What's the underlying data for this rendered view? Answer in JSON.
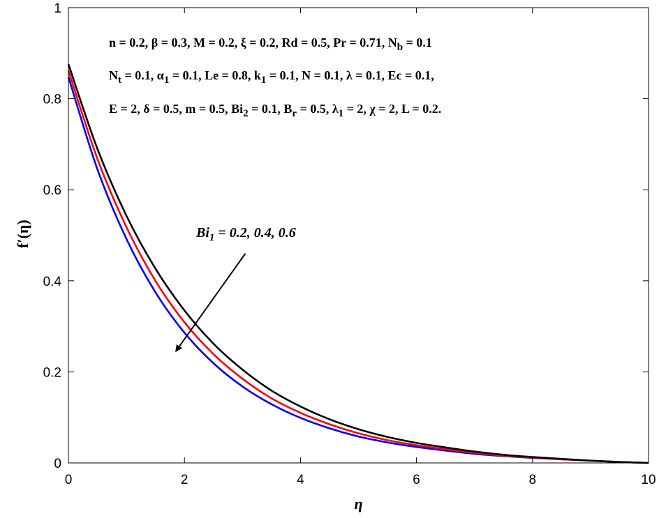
{
  "chart_data": {
    "type": "line",
    "xlabel": "η",
    "ylabel": "f′(η)",
    "xlim": [
      0,
      10
    ],
    "ylim": [
      0,
      1
    ],
    "x_ticks": [
      "0",
      "2",
      "4",
      "6",
      "8",
      "10"
    ],
    "y_ticks": [
      "0",
      "0.2",
      "0.4",
      "0.6",
      "0.8",
      "1"
    ],
    "grid": false,
    "parameter_lines": [
      "n = 0.2, β = 0.3, M = 0.2, ξ = 0.2, Rd = 0.5, Pr = 0.71, N_b = 0.1",
      "N_t = 0.1, α_1 = 0.1, Le = 0.8, k_1 = 0.1, N = 0.1, λ = 0.1, Ec = 0.1,",
      "E = 2, δ = 0.5, m = 0.5, Bi_2 = 0.1, B_r = 0.5, λ_1 = 2, χ = 2, L = 0.2."
    ],
    "annotation": {
      "text": "Bi_1 = 0.2, 0.4, 0.6",
      "arrow_from": [
        3.05,
        0.46
      ],
      "arrow_to": [
        1.85,
        0.245
      ]
    },
    "x": [
      0,
      0.5,
      1,
      1.5,
      2,
      2.5,
      3,
      3.5,
      4,
      4.5,
      5,
      5.5,
      6,
      6.5,
      7,
      7.5,
      8,
      8.5,
      9,
      9.5,
      10
    ],
    "series": [
      {
        "color": "#0000ff",
        "values": [
          0.848,
          0.645,
          0.492,
          0.375,
          0.286,
          0.219,
          0.168,
          0.129,
          0.099,
          0.076,
          0.058,
          0.045,
          0.035,
          0.027,
          0.02,
          0.015,
          0.011,
          0.008,
          0.005,
          0.002,
          0.0
        ]
      },
      {
        "color": "#ff0000",
        "values": [
          0.862,
          0.668,
          0.518,
          0.4,
          0.309,
          0.239,
          0.185,
          0.142,
          0.11,
          0.085,
          0.065,
          0.05,
          0.039,
          0.03,
          0.022,
          0.016,
          0.012,
          0.008,
          0.005,
          0.002,
          0.0
        ]
      },
      {
        "color": "#000000",
        "values": [
          0.876,
          0.69,
          0.543,
          0.427,
          0.335,
          0.262,
          0.205,
          0.159,
          0.124,
          0.096,
          0.074,
          0.057,
          0.044,
          0.034,
          0.025,
          0.018,
          0.013,
          0.009,
          0.005,
          0.002,
          0.0
        ]
      }
    ]
  }
}
